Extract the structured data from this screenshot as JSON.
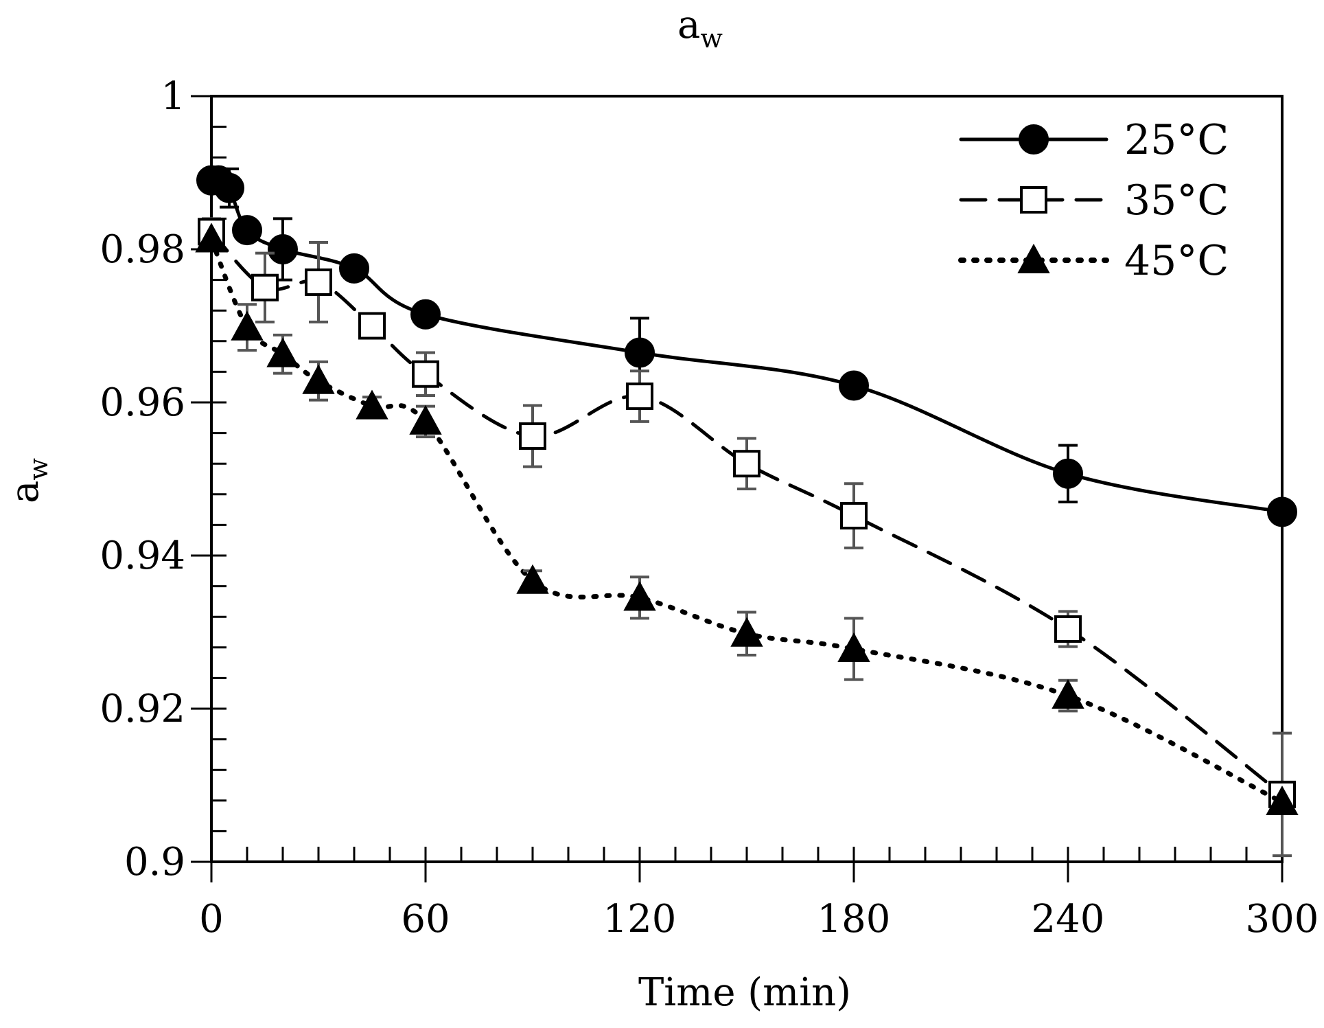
{
  "chart_data": {
    "type": "line",
    "title": "a",
    "title_sub": "w",
    "xlabel": "Time (min)",
    "ylabel": "a",
    "ylabel_sub": "w",
    "xlim": [
      0,
      300
    ],
    "ylim": [
      0.9,
      1.0
    ],
    "xticks": [
      0,
      60,
      120,
      180,
      240,
      300
    ],
    "xtick_labels": [
      "0",
      "60",
      "120",
      "180",
      "240",
      "300"
    ],
    "yticks": [
      0.9,
      0.92,
      0.94,
      0.96,
      0.98,
      1.0
    ],
    "ytick_labels": [
      "0.9",
      "0.92",
      "0.94",
      "0.96",
      "0.98",
      "1"
    ],
    "x_minor_step": 10,
    "y_minor_step": 0.004,
    "grid": false,
    "legend_position": "top-right",
    "series": [
      {
        "name": "25°C",
        "marker": "circle-filled",
        "line": "solid",
        "color": "#000000",
        "x": [
          0,
          2,
          5,
          10,
          20,
          40,
          60,
          120,
          180,
          240,
          300
        ],
        "y": [
          0.989,
          0.989,
          0.988,
          0.9825,
          0.98,
          0.9775,
          0.9715,
          0.9665,
          0.9622,
          0.9507,
          0.9457
        ],
        "err": [
          0,
          0.0015,
          0.0025,
          0,
          0.004,
          0,
          0,
          0.0045,
          0,
          0.0037,
          0
        ]
      },
      {
        "name": "35°C",
        "marker": "square-open",
        "line": "dashed",
        "color": "#000000",
        "x": [
          0,
          15,
          30,
          45,
          60,
          90,
          120,
          150,
          180,
          240,
          300
        ],
        "y": [
          0.9823,
          0.975,
          0.9757,
          0.97,
          0.9637,
          0.9556,
          0.9608,
          0.952,
          0.9452,
          0.9304,
          0.9088
        ],
        "err": [
          0.0017,
          0.0045,
          0.0052,
          0.0015,
          0.0028,
          0.004,
          0.0033,
          0.0033,
          0.0042,
          0.0023,
          0.008
        ]
      },
      {
        "name": "45°C",
        "marker": "triangle-filled",
        "line": "dotted",
        "color": "#000000",
        "x": [
          0,
          10,
          20,
          30,
          45,
          60,
          90,
          120,
          150,
          180,
          240,
          300
        ],
        "y": [
          0.9813,
          0.9698,
          0.9663,
          0.9628,
          0.9595,
          0.9575,
          0.9367,
          0.9345,
          0.9298,
          0.9278,
          0.9217,
          0.9078
        ],
        "err": [
          0,
          0.003,
          0.0025,
          0.0025,
          0.0012,
          0.002,
          0.0013,
          0.0027,
          0.0028,
          0.004,
          0.002,
          0
        ]
      }
    ]
  }
}
